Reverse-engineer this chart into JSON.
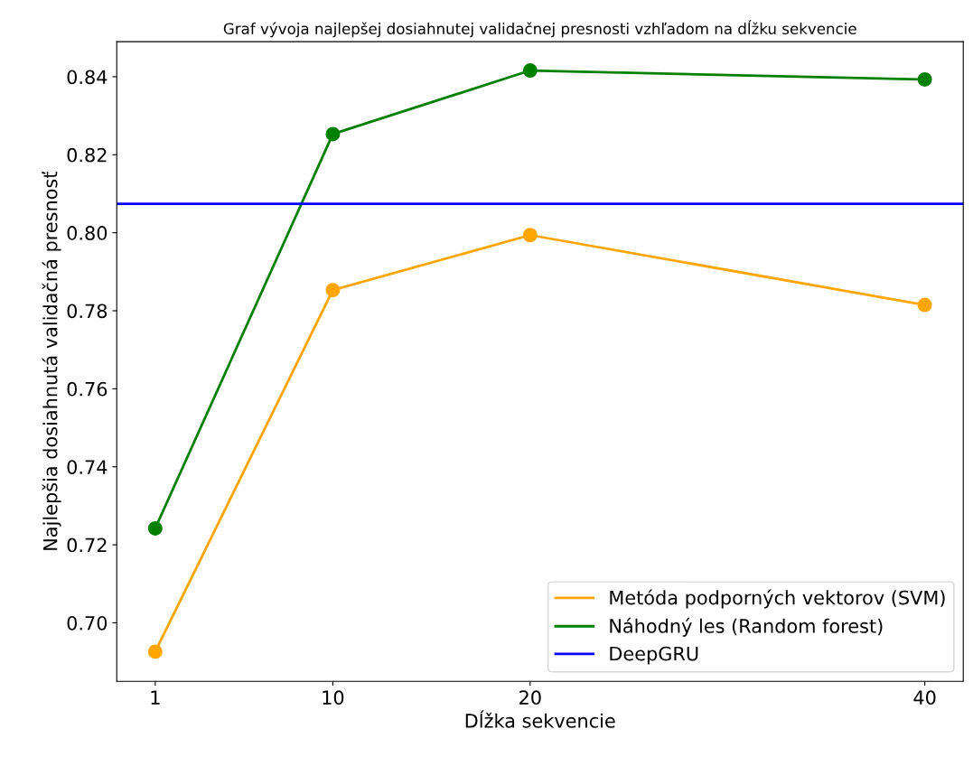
{
  "chart_data": {
    "type": "line",
    "title": "Graf vývoja najlepšej dosiahnutej validačnej presnosti vzhľadom na dĺžku sekvencie",
    "xlabel": "Dĺžka sekvencie",
    "ylabel": "Najlepšia dosiahnutá validačná presnosť",
    "x": [
      1,
      10,
      20,
      40
    ],
    "series": [
      {
        "name": "Metóda podporných vektorov (SVM)",
        "color": "#ffa500",
        "values": [
          0.6926,
          0.7853,
          0.7994,
          0.7815
        ]
      },
      {
        "name": "Náhodný les (Random forest)",
        "color": "#008000",
        "values": [
          0.7242,
          0.8253,
          0.8416,
          0.8393
        ]
      }
    ],
    "ref_lines": [
      {
        "axis": "y",
        "value": 0.8074,
        "label": "DeepGRU",
        "color": "#0000ff",
        "line_style": "solid"
      }
    ],
    "xlim": [
      -0.95,
      41.95
    ],
    "xticks": [
      1,
      10,
      20,
      40
    ],
    "ylim": [
      0.685,
      0.849
    ],
    "yticks": [
      {
        "value": 0.7,
        "label": "0.70"
      },
      0.72,
      0.74,
      0.76,
      0.78,
      {
        "value": 0.8,
        "label": "0.80"
      },
      0.82,
      0.84
    ],
    "marker": "circle",
    "line_style": "solid",
    "legend": "bottom right",
    "grid": false
  }
}
